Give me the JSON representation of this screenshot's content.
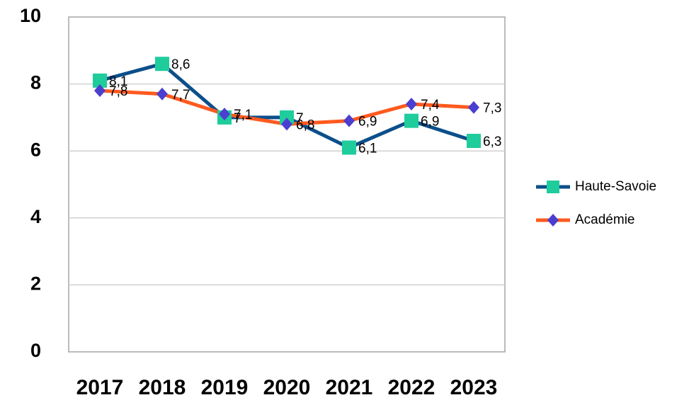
{
  "chart_data": {
    "type": "line",
    "categories": [
      "2017",
      "2018",
      "2019",
      "2020",
      "2021",
      "2022",
      "2023"
    ],
    "series": [
      {
        "name": "Haute-Savoie",
        "color": "#0b4f8a",
        "marker": "square",
        "marker_color": "#1fcc9c",
        "values": [
          8.1,
          8.6,
          7,
          7,
          6.1,
          6.9,
          6.3
        ],
        "value_labels": [
          "8,1",
          "8,6",
          "7",
          "7",
          "6,1",
          "6,9",
          "6,3"
        ]
      },
      {
        "name": "Académie",
        "color": "#ff5a1f",
        "marker": "diamond",
        "marker_color": "#4b3fcf",
        "values": [
          7.8,
          7.7,
          7.1,
          6.8,
          6.9,
          7.4,
          7.3
        ],
        "value_labels": [
          "7,8",
          "7,7",
          "7,1",
          "6,8",
          "6,9",
          "7,4",
          "7,3"
        ]
      }
    ],
    "ylim": [
      0,
      10
    ],
    "yticks": [
      0,
      2,
      4,
      6,
      8,
      10
    ],
    "grid": true,
    "legend": "right"
  }
}
